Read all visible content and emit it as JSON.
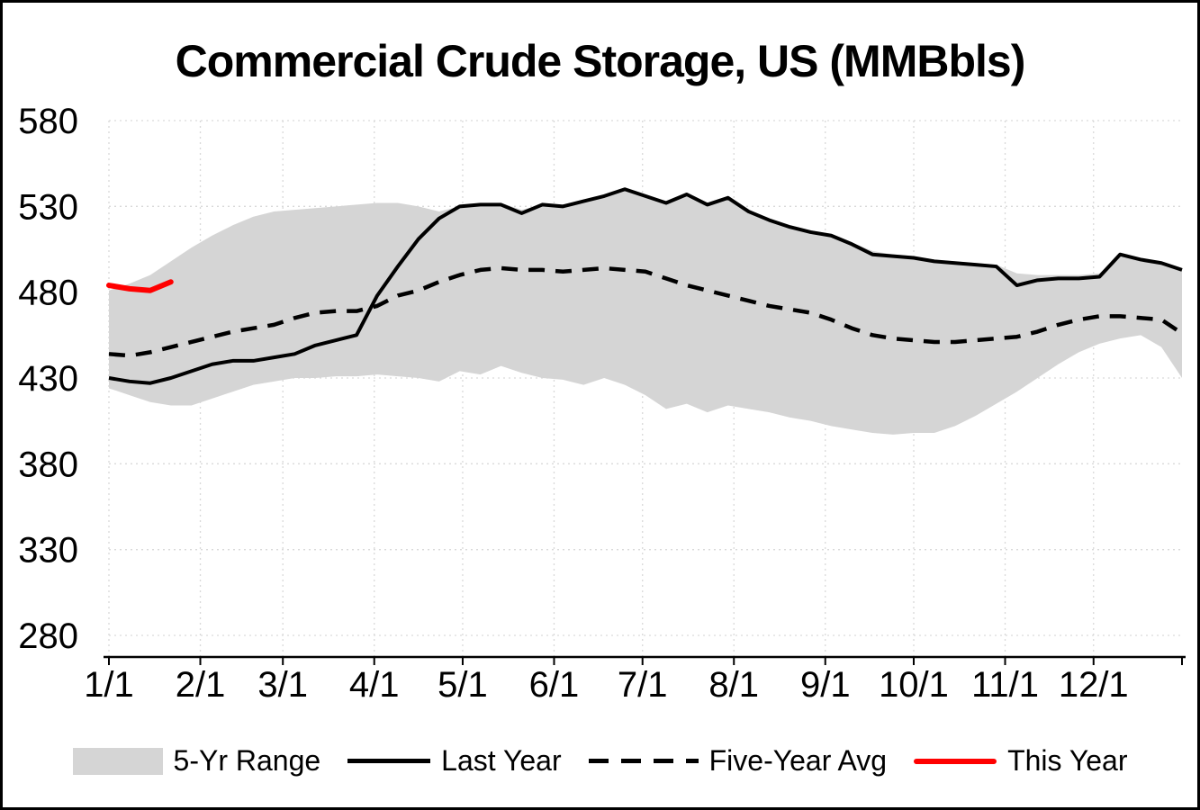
{
  "title": "Commercial Crude Storage, US (MMBbls)",
  "colors": {
    "band": "#d5d5d5",
    "line": "#000000",
    "this_year": "#ff0000",
    "grid": "#d9d9d9",
    "axis": "#000000",
    "text": "#000000"
  },
  "legend": {
    "items": [
      {
        "label": "5-Yr Range"
      },
      {
        "label": "Last Year"
      },
      {
        "label": "Five-Year Avg"
      },
      {
        "label": "This Year"
      }
    ]
  },
  "chart_data": {
    "type": "line",
    "title": "Commercial Crude Storage, US (MMBbls)",
    "xlabel": "",
    "ylabel": "",
    "ylim": [
      280,
      580
    ],
    "y_ticks": [
      280,
      330,
      380,
      430,
      480,
      530,
      580
    ],
    "x_tick_labels": [
      "1/1",
      "2/1",
      "3/1",
      "4/1",
      "5/1",
      "6/1",
      "7/1",
      "8/1",
      "9/1",
      "10/1",
      "11/1",
      "12/1"
    ],
    "x_tick_days": [
      1,
      32,
      60,
      91,
      121,
      152,
      182,
      213,
      244,
      274,
      305,
      335
    ],
    "x_max_day": 365,
    "start_day": 1,
    "step_days": 7,
    "sampling": "weekly",
    "grid": true,
    "legend_position": "bottom",
    "series": [
      {
        "name": "5-Yr Range",
        "type": "band",
        "color": "#d5d5d5",
        "upper": [
          481,
          485,
          490,
          498,
          506,
          513,
          519,
          524,
          527,
          528,
          529,
          530,
          531,
          532,
          532,
          530,
          527,
          530,
          531,
          532,
          528,
          531,
          531,
          533,
          536,
          540,
          536,
          533,
          537,
          531,
          535,
          528,
          523,
          519,
          516,
          514,
          509,
          504,
          502,
          501,
          499,
          498,
          497,
          496,
          491,
          490,
          490,
          490,
          491,
          502,
          500,
          498,
          494
        ],
        "lower": [
          424,
          420,
          416,
          414,
          414,
          418,
          422,
          426,
          428,
          430,
          430,
          431,
          431,
          432,
          431,
          430,
          428,
          434,
          432,
          437,
          433,
          430,
          429,
          426,
          430,
          426,
          420,
          412,
          415,
          410,
          414,
          412,
          410,
          407,
          405,
          402,
          400,
          398,
          397,
          398,
          398,
          402,
          408,
          415,
          422,
          430,
          438,
          445,
          450,
          453,
          455,
          448,
          430
        ]
      },
      {
        "name": "Last Year",
        "type": "line",
        "style": "solid",
        "color": "#000000",
        "width": 4,
        "values": [
          430,
          428,
          427,
          430,
          434,
          438,
          440,
          440,
          442,
          444,
          449,
          452,
          455,
          478,
          495,
          511,
          523,
          530,
          531,
          531,
          526,
          531,
          530,
          533,
          536,
          540,
          536,
          532,
          537,
          531,
          535,
          527,
          522,
          518,
          515,
          513,
          508,
          502,
          501,
          500,
          498,
          497,
          496,
          495,
          484,
          487,
          488,
          488,
          489,
          502,
          499,
          497,
          493
        ]
      },
      {
        "name": "Five-Year Avg",
        "type": "line",
        "style": "dashed",
        "color": "#000000",
        "width": 4.5,
        "values": [
          444,
          443,
          445,
          448,
          451,
          454,
          457,
          459,
          461,
          465,
          468,
          469,
          469,
          472,
          478,
          481,
          486,
          490,
          493,
          494,
          493,
          493,
          492,
          493,
          494,
          493,
          492,
          488,
          484,
          481,
          478,
          475,
          472,
          470,
          468,
          464,
          459,
          455,
          453,
          452,
          451,
          451,
          452,
          453,
          454,
          457,
          461,
          464,
          466,
          466,
          465,
          464,
          456
        ]
      },
      {
        "name": "This Year",
        "type": "line",
        "style": "solid",
        "color": "#ff0000",
        "width": 6,
        "values": [
          484,
          482,
          481,
          486
        ]
      }
    ]
  }
}
